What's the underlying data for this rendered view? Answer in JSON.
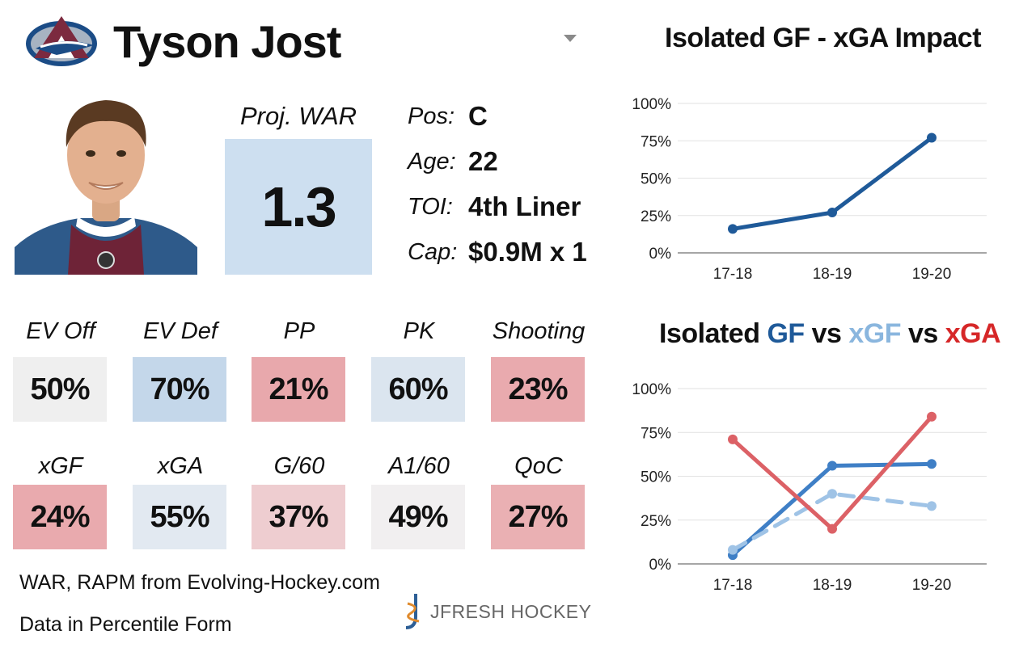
{
  "header": {
    "player_name": "Tyson Jost",
    "logo_icon": "colorado-avalanche-logo",
    "dropdown_icon": "caret-down-icon"
  },
  "projection": {
    "label": "Proj. WAR",
    "value": "1.3"
  },
  "player_info": [
    {
      "label": "Pos:",
      "value": "C"
    },
    {
      "label": "Age:",
      "value": "22"
    },
    {
      "label": "TOI:",
      "value": "4th Liner"
    },
    {
      "label": "Cap:",
      "value": "$0.9M x 1"
    }
  ],
  "metrics_row1": [
    {
      "label": "EV Off",
      "value": "50%",
      "color": "#efefef"
    },
    {
      "label": "EV Def",
      "value": "70%",
      "color": "#c4d7ea"
    },
    {
      "label": "PP",
      "value": "21%",
      "color": "#e8a8ac"
    },
    {
      "label": "PK",
      "value": "60%",
      "color": "#dbe5ef"
    },
    {
      "label": "Shooting",
      "value": "23%",
      "color": "#e9aaae"
    }
  ],
  "metrics_row2": [
    {
      "label": "xGF",
      "value": "24%",
      "color": "#e9aaae"
    },
    {
      "label": "xGA",
      "value": "55%",
      "color": "#e2e9f1"
    },
    {
      "label": "G/60",
      "value": "37%",
      "color": "#eecdd0"
    },
    {
      "label": "A1/60",
      "value": "49%",
      "color": "#f1eff0"
    },
    {
      "label": "QoC",
      "value": "27%",
      "color": "#eab0b3"
    }
  ],
  "footer": {
    "source": "WAR, RAPM from  Evolving-Hockey.com",
    "note": "Data in Percentile Form",
    "brand": "JFRESH HOCKEY",
    "brand_icon": "jfresh-logo-icon"
  },
  "chart1_title": "Isolated GF - xGA Impact",
  "chart2_title_parts": [
    {
      "text": "Isolated ",
      "color": "#111111"
    },
    {
      "text": "GF",
      "color": "#1f5a99"
    },
    {
      "text": " vs ",
      "color": "#111111"
    },
    {
      "text": "xGF",
      "color": "#8ab6de"
    },
    {
      "text": " vs ",
      "color": "#111111"
    },
    {
      "text": "xGA",
      "color": "#d62728"
    }
  ],
  "chart_data": [
    {
      "type": "line",
      "title": "Isolated GF - xGA Impact",
      "categories": [
        "17-18",
        "18-19",
        "19-20"
      ],
      "yticks": [
        "0%",
        "25%",
        "50%",
        "75%",
        "100%"
      ],
      "ylim": [
        0,
        100
      ],
      "grid": true,
      "series": [
        {
          "values": [
            16,
            27,
            77
          ],
          "color": "#1f5a99",
          "dashed": false
        }
      ]
    },
    {
      "type": "line",
      "title": "Isolated GF vs xGF vs xGA",
      "categories": [
        "17-18",
        "18-19",
        "19-20"
      ],
      "yticks": [
        "0%",
        "25%",
        "50%",
        "75%",
        "100%"
      ],
      "ylim": [
        0,
        100
      ],
      "grid": true,
      "series": [
        {
          "name": "GF",
          "values": [
            5,
            56,
            57
          ],
          "color": "#3f7fc6",
          "dashed": false
        },
        {
          "name": "xGF",
          "values": [
            8,
            40,
            33
          ],
          "color": "#9fc3e6",
          "dashed": true
        },
        {
          "name": "xGA",
          "values": [
            71,
            20,
            84
          ],
          "color": "#dc6166",
          "dashed": false
        }
      ]
    }
  ]
}
